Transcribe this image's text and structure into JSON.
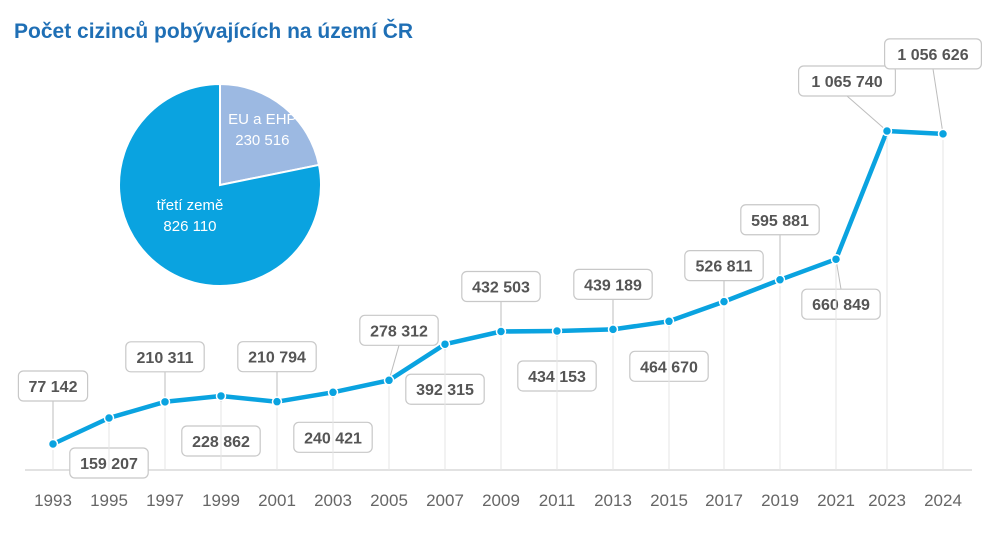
{
  "title": "Počet cizinců pobývajících na území ČR",
  "chart_data": [
    {
      "type": "line",
      "categories": [
        "1993",
        "1995",
        "1997",
        "1999",
        "2001",
        "2003",
        "2005",
        "2007",
        "2009",
        "2011",
        "2013",
        "2015",
        "2017",
        "2019",
        "2021",
        "2023",
        "2024"
      ],
      "series": [
        {
          "values": [
            77142,
            159207,
            210311,
            228862,
            210794,
            240421,
            278312,
            392315,
            432503,
            434153,
            439189,
            464670,
            526811,
            595881,
            660849,
            1065740,
            1056626
          ],
          "labels": [
            "77 142",
            "159 207",
            "210 311",
            "228 862",
            "210 794",
            "240 421",
            "278 312",
            "392 315",
            "432 503",
            "434 153",
            "439 189",
            "464 670",
            "526 811",
            "595 881",
            "660 849",
            "1 065 740",
            "1 056 626"
          ]
        }
      ],
      "color": "#0aa3e0",
      "grid": false
    },
    {
      "type": "pie",
      "slices": [
        {
          "label": "EU a EHP",
          "value": 230516,
          "value_text": "230 516",
          "color": "#9cb9e2"
        },
        {
          "label": "třetí země",
          "value": 826110,
          "value_text": "826 110",
          "color": "#0aa3e0"
        }
      ]
    }
  ]
}
